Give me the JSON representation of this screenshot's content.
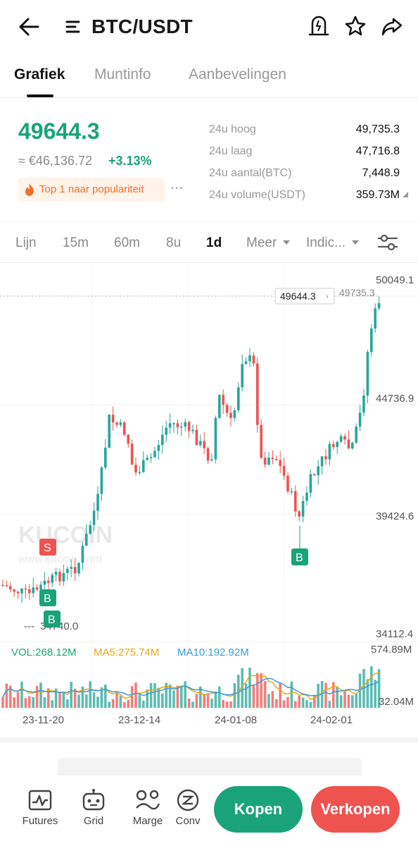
{
  "header": {
    "title": "BTC/USDT",
    "icons": [
      "back-arrow-icon",
      "menu-icon",
      "price-alert-icon",
      "star-icon",
      "share-icon"
    ]
  },
  "tabs": [
    "Grafiek",
    "Muntinfo",
    "Aanbevelingen"
  ],
  "ticker": {
    "last_price": "49644.3",
    "fiat_value": "≈ €46,136.72",
    "change": "+3.13%",
    "popularity": "Top 1 naar populariteit",
    "more": "···",
    "stats": [
      {
        "label": "24u hoog",
        "value": "49,735.3"
      },
      {
        "label": "24u laag",
        "value": "47,716.8"
      },
      {
        "label": "24u aantal(BTC)",
        "value": "7,448.9"
      },
      {
        "label": "24u volume(USDT)",
        "value": "359.73M"
      }
    ]
  },
  "intervals": {
    "items": [
      "Lijn",
      "15m",
      "60m",
      "8u",
      "1d",
      "Meer",
      "Indic..."
    ],
    "active": "1d"
  },
  "chart_data": {
    "type": "candlestick",
    "price_axis": [
      "50049.1",
      "44736.9",
      "39424.6",
      "34112.4"
    ],
    "current_price_tag": "49644.3",
    "high_marker": "49735.3",
    "low_marker": "34740.0",
    "signals": [
      "S",
      "B",
      "B",
      "B"
    ],
    "volume": {
      "vol": "VOL:268.12M",
      "ma5": "MA5:275.74M",
      "ma10": "MA10:192.92M",
      "max": "574.89M",
      "min": "32.04M"
    },
    "dates": [
      "23-11-20",
      "23-12-14",
      "24-01-08",
      "24-02-01"
    ],
    "colors": {
      "up": "#26a69a",
      "down": "#ef5350",
      "ma5": "#e6a817",
      "ma10": "#3c9bd6"
    }
  },
  "watermark": "KUCOIN",
  "watermark_url": "www.kucoin.com",
  "bottom_nav": {
    "items": [
      {
        "label": "Futures",
        "icon": "futures-icon"
      },
      {
        "label": "Grid",
        "icon": "grid-bot-icon"
      },
      {
        "label": "Marge",
        "icon": "margin-icon"
      },
      {
        "label": "Conv",
        "icon": "convert-icon"
      }
    ],
    "buy": "Kopen",
    "sell": "Verkopen"
  }
}
